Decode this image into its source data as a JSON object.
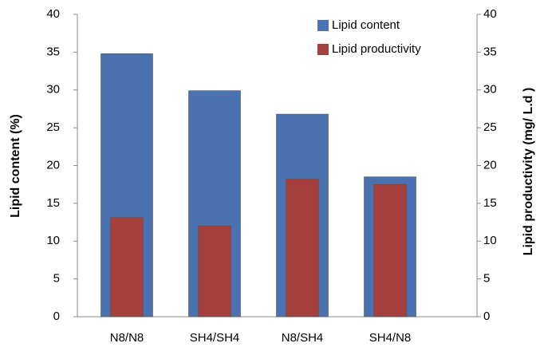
{
  "chart_data": {
    "type": "bar",
    "categories": [
      "N8/N8",
      "SH4/SH4",
      "N8/SH4",
      "SH4/N8"
    ],
    "series": [
      {
        "name": "Lipid content",
        "color": "#4a72b0",
        "values": [
          34.8,
          29.9,
          26.8,
          18.5
        ]
      },
      {
        "name": "Lipid productivity",
        "color": "#a5403e",
        "values": [
          13.1,
          12.0,
          18.2,
          17.5
        ],
        "axis": "y2"
      }
    ],
    "ylabel": "Lipid content (%)",
    "y2label": "Lipid  productivity (mg/ L.d )",
    "ylim": [
      0,
      40
    ],
    "yticks": [
      0,
      5,
      10,
      15,
      20,
      25,
      30,
      35,
      40
    ],
    "y2lim": [
      0,
      40
    ],
    "y2ticks": [
      0,
      5,
      10,
      15,
      20,
      25,
      30,
      35,
      40
    ],
    "legend": "top-right"
  }
}
